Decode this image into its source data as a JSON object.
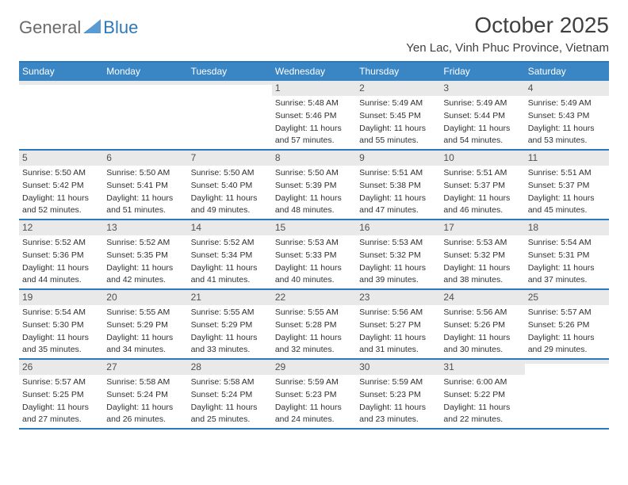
{
  "logo": {
    "word1": "General",
    "word2": "Blue"
  },
  "title": {
    "month": "October 2025",
    "location": "Yen Lac, Vinh Phuc Province, Vietnam"
  },
  "colors": {
    "brand": "#2d78b8",
    "header_bg": "#3a86c4",
    "daynum_bg": "#e9e9e9",
    "text": "#303030"
  },
  "day_headers": [
    "Sunday",
    "Monday",
    "Tuesday",
    "Wednesday",
    "Thursday",
    "Friday",
    "Saturday"
  ],
  "weeks": [
    [
      {
        "n": "",
        "sr": "",
        "ss": "",
        "dl": ""
      },
      {
        "n": "",
        "sr": "",
        "ss": "",
        "dl": ""
      },
      {
        "n": "",
        "sr": "",
        "ss": "",
        "dl": ""
      },
      {
        "n": "1",
        "sr": "5:48 AM",
        "ss": "5:46 PM",
        "dl": "11 hours and 57 minutes."
      },
      {
        "n": "2",
        "sr": "5:49 AM",
        "ss": "5:45 PM",
        "dl": "11 hours and 55 minutes."
      },
      {
        "n": "3",
        "sr": "5:49 AM",
        "ss": "5:44 PM",
        "dl": "11 hours and 54 minutes."
      },
      {
        "n": "4",
        "sr": "5:49 AM",
        "ss": "5:43 PM",
        "dl": "11 hours and 53 minutes."
      }
    ],
    [
      {
        "n": "5",
        "sr": "5:50 AM",
        "ss": "5:42 PM",
        "dl": "11 hours and 52 minutes."
      },
      {
        "n": "6",
        "sr": "5:50 AM",
        "ss": "5:41 PM",
        "dl": "11 hours and 51 minutes."
      },
      {
        "n": "7",
        "sr": "5:50 AM",
        "ss": "5:40 PM",
        "dl": "11 hours and 49 minutes."
      },
      {
        "n": "8",
        "sr": "5:50 AM",
        "ss": "5:39 PM",
        "dl": "11 hours and 48 minutes."
      },
      {
        "n": "9",
        "sr": "5:51 AM",
        "ss": "5:38 PM",
        "dl": "11 hours and 47 minutes."
      },
      {
        "n": "10",
        "sr": "5:51 AM",
        "ss": "5:37 PM",
        "dl": "11 hours and 46 minutes."
      },
      {
        "n": "11",
        "sr": "5:51 AM",
        "ss": "5:37 PM",
        "dl": "11 hours and 45 minutes."
      }
    ],
    [
      {
        "n": "12",
        "sr": "5:52 AM",
        "ss": "5:36 PM",
        "dl": "11 hours and 44 minutes."
      },
      {
        "n": "13",
        "sr": "5:52 AM",
        "ss": "5:35 PM",
        "dl": "11 hours and 42 minutes."
      },
      {
        "n": "14",
        "sr": "5:52 AM",
        "ss": "5:34 PM",
        "dl": "11 hours and 41 minutes."
      },
      {
        "n": "15",
        "sr": "5:53 AM",
        "ss": "5:33 PM",
        "dl": "11 hours and 40 minutes."
      },
      {
        "n": "16",
        "sr": "5:53 AM",
        "ss": "5:32 PM",
        "dl": "11 hours and 39 minutes."
      },
      {
        "n": "17",
        "sr": "5:53 AM",
        "ss": "5:32 PM",
        "dl": "11 hours and 38 minutes."
      },
      {
        "n": "18",
        "sr": "5:54 AM",
        "ss": "5:31 PM",
        "dl": "11 hours and 37 minutes."
      }
    ],
    [
      {
        "n": "19",
        "sr": "5:54 AM",
        "ss": "5:30 PM",
        "dl": "11 hours and 35 minutes."
      },
      {
        "n": "20",
        "sr": "5:55 AM",
        "ss": "5:29 PM",
        "dl": "11 hours and 34 minutes."
      },
      {
        "n": "21",
        "sr": "5:55 AM",
        "ss": "5:29 PM",
        "dl": "11 hours and 33 minutes."
      },
      {
        "n": "22",
        "sr": "5:55 AM",
        "ss": "5:28 PM",
        "dl": "11 hours and 32 minutes."
      },
      {
        "n": "23",
        "sr": "5:56 AM",
        "ss": "5:27 PM",
        "dl": "11 hours and 31 minutes."
      },
      {
        "n": "24",
        "sr": "5:56 AM",
        "ss": "5:26 PM",
        "dl": "11 hours and 30 minutes."
      },
      {
        "n": "25",
        "sr": "5:57 AM",
        "ss": "5:26 PM",
        "dl": "11 hours and 29 minutes."
      }
    ],
    [
      {
        "n": "26",
        "sr": "5:57 AM",
        "ss": "5:25 PM",
        "dl": "11 hours and 27 minutes."
      },
      {
        "n": "27",
        "sr": "5:58 AM",
        "ss": "5:24 PM",
        "dl": "11 hours and 26 minutes."
      },
      {
        "n": "28",
        "sr": "5:58 AM",
        "ss": "5:24 PM",
        "dl": "11 hours and 25 minutes."
      },
      {
        "n": "29",
        "sr": "5:59 AM",
        "ss": "5:23 PM",
        "dl": "11 hours and 24 minutes."
      },
      {
        "n": "30",
        "sr": "5:59 AM",
        "ss": "5:23 PM",
        "dl": "11 hours and 23 minutes."
      },
      {
        "n": "31",
        "sr": "6:00 AM",
        "ss": "5:22 PM",
        "dl": "11 hours and 22 minutes."
      },
      {
        "n": "",
        "sr": "",
        "ss": "",
        "dl": ""
      }
    ]
  ],
  "labels": {
    "sunrise": "Sunrise:",
    "sunset": "Sunset:",
    "daylight": "Daylight:"
  }
}
